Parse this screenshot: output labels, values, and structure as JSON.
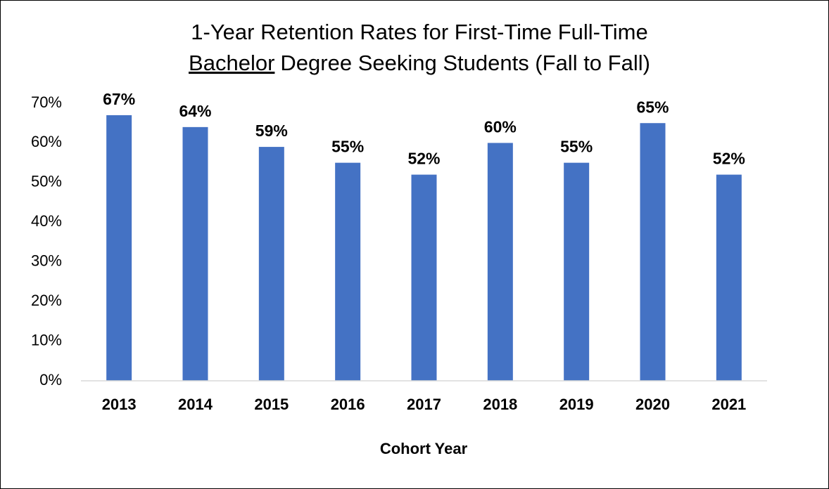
{
  "chart_data": {
    "type": "bar",
    "title": {
      "line1": "1-Year Retention Rates for First-Time Full-Time",
      "line2": {
        "underlined": "Bachelor",
        "rest": "Degree Seeking Students (Fall to Fall)"
      }
    },
    "x_label": "Cohort Year",
    "categories": [
      "2013",
      "2014",
      "2015",
      "2016",
      "2017",
      "2018",
      "2019",
      "2020",
      "2021"
    ],
    "values": [
      67,
      64,
      59,
      55,
      52,
      60,
      55,
      65,
      52
    ],
    "value_labels": [
      "67%",
      "64%",
      "59%",
      "55%",
      "52%",
      "60%",
      "55%",
      "65%",
      "52%"
    ],
    "color": "#4472c4",
    "ylim": [
      0,
      70
    ],
    "yticks": [
      {
        "value": 0,
        "label": "0%"
      },
      {
        "value": 10,
        "label": "10%"
      },
      {
        "value": 20,
        "label": "20%"
      },
      {
        "value": 30,
        "label": "30%"
      },
      {
        "value": 40,
        "label": "40%"
      },
      {
        "value": 50,
        "label": "50%"
      },
      {
        "value": 60,
        "label": "60%"
      },
      {
        "value": 70,
        "label": "70%"
      }
    ],
    "grid": false
  }
}
